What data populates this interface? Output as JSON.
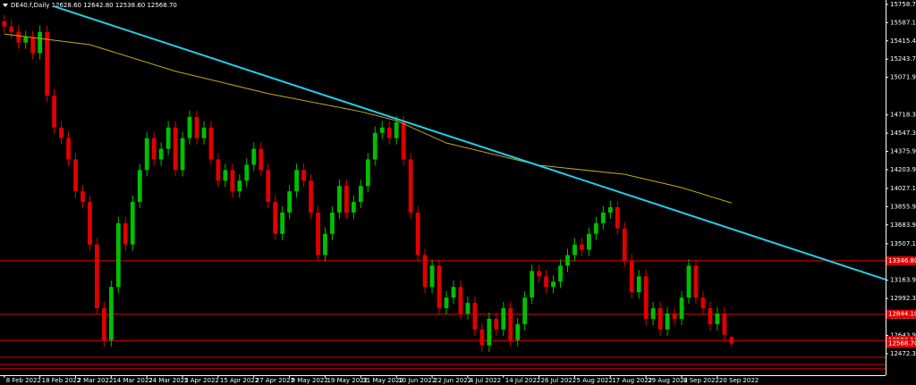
{
  "chart_data": {
    "type": "candlestick",
    "title": "DE40.f,Daily  12628.60 12642.80 12538.60 12568.70",
    "categories": [
      "8 Feb 2022",
      null,
      null,
      null,
      null,
      "18 Feb 2022",
      null,
      null,
      null,
      null,
      "2 Mar 2022",
      null,
      null,
      null,
      null,
      "14 Mar 2022",
      null,
      null,
      null,
      null,
      "24 Mar 2022",
      null,
      null,
      null,
      null,
      "5 Apr 2022",
      null,
      null,
      null,
      null,
      "15 Apr 2022",
      null,
      null,
      null,
      null,
      "27 Apr 2022",
      null,
      null,
      null,
      null,
      "9 May 2022",
      null,
      null,
      null,
      null,
      "19 May 2022",
      null,
      null,
      null,
      null,
      "31 May 2022",
      null,
      null,
      null,
      null,
      "10 Jun 2022",
      null,
      null,
      null,
      null,
      "22 Jun 2022",
      null,
      null,
      null,
      null,
      "4 Jul 2022",
      null,
      null,
      null,
      null,
      "14 Jul 2022",
      null,
      null,
      null,
      null,
      "26 Jul 2022",
      null,
      null,
      null,
      null,
      "5 Aug 2022",
      null,
      null,
      null,
      null,
      "17 Aug 2022",
      null,
      null,
      null,
      null,
      "29 Aug 2022",
      null,
      null,
      null,
      null,
      "8 Sep 2022",
      null,
      null,
      null,
      null,
      "20 Sep 2022",
      null,
      null
    ],
    "open": [
      15600,
      15550,
      15500,
      15400,
      15450,
      15300,
      15500,
      14900,
      14600,
      14500,
      14300,
      14000,
      13900,
      13500,
      12900,
      12600,
      13100,
      13700,
      13500,
      13900,
      14200,
      14500,
      14300,
      14400,
      14600,
      14200,
      14500,
      14700,
      14500,
      14600,
      14300,
      14100,
      14200,
      14000,
      14100,
      14250,
      14400,
      14200,
      13900,
      13600,
      13800,
      14000,
      14200,
      14100,
      13800,
      13400,
      13600,
      13800,
      14050,
      13800,
      13900,
      14050,
      14300,
      14550,
      14600,
      14500,
      14650,
      14300,
      13800,
      13400,
      13100,
      13300,
      12900,
      13000,
      13100,
      12850,
      12950,
      12700,
      12550,
      12800,
      12700,
      12900,
      12600,
      12750,
      13000,
      13250,
      13200,
      13100,
      13150,
      13300,
      13400,
      13500,
      13450,
      13600,
      13700,
      13800,
      13850,
      13650,
      13350,
      13050,
      13200,
      12800,
      12900,
      12700,
      12850,
      12800,
      13000,
      13300,
      13000,
      12900,
      12750,
      12850,
      12628.6
    ],
    "high": [
      15660,
      15610,
      15560,
      15510,
      15510,
      15560,
      15560,
      14960,
      14660,
      14560,
      14360,
      14060,
      13960,
      13560,
      12960,
      13160,
      13760,
      13760,
      13960,
      14260,
      14560,
      14560,
      14460,
      14660,
      14660,
      14560,
      14760,
      14760,
      14660,
      14660,
      14360,
      14260,
      14260,
      14160,
      14310,
      14460,
      14460,
      14260,
      13960,
      13860,
      14060,
      14260,
      14260,
      14160,
      13860,
      13660,
      13860,
      14110,
      14110,
      13960,
      14110,
      14360,
      14610,
      14660,
      14660,
      14710,
      14710,
      14360,
      13860,
      13460,
      13360,
      13360,
      13060,
      13160,
      13160,
      13010,
      13010,
      12760,
      12860,
      12860,
      12960,
      12960,
      12810,
      13060,
      13310,
      13310,
      13260,
      13210,
      13360,
      13460,
      13560,
      13560,
      13660,
      13760,
      13860,
      13910,
      13910,
      13710,
      13410,
      13260,
      13260,
      12960,
      12960,
      12910,
      12910,
      13060,
      13360,
      13360,
      13060,
      12960,
      12910,
      12910,
      12642.8
    ],
    "low": [
      15490,
      15440,
      15340,
      15340,
      15240,
      15240,
      14840,
      14540,
      14440,
      14240,
      13940,
      13840,
      13440,
      12840,
      12540,
      12540,
      13040,
      13440,
      13440,
      13840,
      14140,
      14240,
      14240,
      14340,
      14140,
      14140,
      14440,
      14440,
      14440,
      14240,
      14040,
      14040,
      13940,
      13940,
      14040,
      14190,
      14140,
      13840,
      13540,
      13540,
      13740,
      13940,
      14040,
      13740,
      13340,
      13340,
      13540,
      13740,
      13740,
      13740,
      13840,
      13990,
      14240,
      14490,
      14440,
      14440,
      14240,
      13740,
      13340,
      13040,
      13040,
      12840,
      12840,
      12940,
      12790,
      12790,
      12640,
      12490,
      12490,
      12640,
      12640,
      12540,
      12540,
      12690,
      12940,
      13140,
      13040,
      13040,
      13090,
      13240,
      13340,
      13390,
      13390,
      13540,
      13640,
      13740,
      13590,
      13290,
      12990,
      12990,
      12740,
      12740,
      12640,
      12640,
      12740,
      12740,
      12940,
      12940,
      12840,
      12690,
      12690,
      12590,
      12538.6
    ],
    "close": [
      15550,
      15500,
      15400,
      15450,
      15300,
      15500,
      14900,
      14600,
      14500,
      14300,
      14000,
      13900,
      13500,
      12900,
      12600,
      13100,
      13700,
      13500,
      13900,
      14200,
      14500,
      14300,
      14400,
      14600,
      14200,
      14500,
      14700,
      14500,
      14600,
      14300,
      14100,
      14200,
      14000,
      14100,
      14250,
      14400,
      14200,
      13900,
      13600,
      13800,
      14000,
      14200,
      14100,
      13800,
      13400,
      13600,
      13800,
      14050,
      13800,
      13900,
      14050,
      14300,
      14550,
      14600,
      14500,
      14650,
      14300,
      13800,
      13400,
      13100,
      13300,
      12900,
      13000,
      13100,
      12850,
      12950,
      12700,
      12550,
      12800,
      12700,
      12900,
      12600,
      12750,
      13000,
      13250,
      13200,
      13100,
      13150,
      13300,
      13400,
      13500,
      13450,
      13600,
      13700,
      13800,
      13850,
      13650,
      13350,
      13050,
      13200,
      12800,
      12900,
      12700,
      12850,
      12800,
      13000,
      13300,
      13000,
      12900,
      12750,
      12850,
      12650,
      12568.7
    ],
    "up_color": "#00c000",
    "down_color": "#e00000",
    "xlim": [
      -0.6,
      123.6
    ],
    "ylim": [
      12270,
      15800
    ],
    "yticks": [
      {
        "value": 15758.7,
        "label": "15758.70"
      },
      {
        "value": 15587.1,
        "label": "15587.10"
      },
      {
        "value": 15415.4,
        "label": "15415.40"
      },
      {
        "value": 15243.7,
        "label": "15243.70"
      },
      {
        "value": 15071.9,
        "label": "15071.90"
      },
      {
        "value": 14718.3,
        "label": "14718.30"
      },
      {
        "value": 14547.3,
        "label": "14547.30"
      },
      {
        "value": 14375.9,
        "label": "14375.90"
      },
      {
        "value": 14203.9,
        "label": "14203.90"
      },
      {
        "value": 14027.1,
        "label": "14027.10"
      },
      {
        "value": 13855.9,
        "label": "13855.90"
      },
      {
        "value": 13683.9,
        "label": "13683.90"
      },
      {
        "value": 13507.1,
        "label": "13507.10"
      },
      {
        "value": 13163.9,
        "label": "13163.90"
      },
      {
        "value": 12992.3,
        "label": "12992.30"
      },
      {
        "value": 12815.3,
        "label": "12815.30"
      },
      {
        "value": 12643.9,
        "label": "12643.90"
      },
      {
        "value": 12472.3,
        "label": "12472.30"
      }
    ],
    "moving_average": {
      "type": "line",
      "color": "#c8a818",
      "x": [
        0,
        12,
        24,
        37,
        50,
        55,
        62,
        75,
        87,
        95,
        102
      ],
      "values": [
        15480,
        15380,
        15130,
        14920,
        14750,
        14665,
        14455,
        14245,
        14160,
        14035,
        13890
      ]
    },
    "trendline": {
      "type": "line",
      "color": "#20d0e8",
      "x": [
        7,
        123.6
      ],
      "values": [
        15740,
        13170
      ]
    },
    "levels": {
      "color": "#e00000",
      "values": [
        {
          "value": 13346.8,
          "label": "13346.80"
        },
        {
          "value": 12844.1,
          "label": "12844.10"
        },
        {
          "value": 12596.1,
          "label": "12596.10"
        },
        12438,
        12371,
        12330
      ]
    },
    "current_price": {
      "value": 12568.7,
      "label": "12568.70",
      "color": "#e00000"
    }
  }
}
